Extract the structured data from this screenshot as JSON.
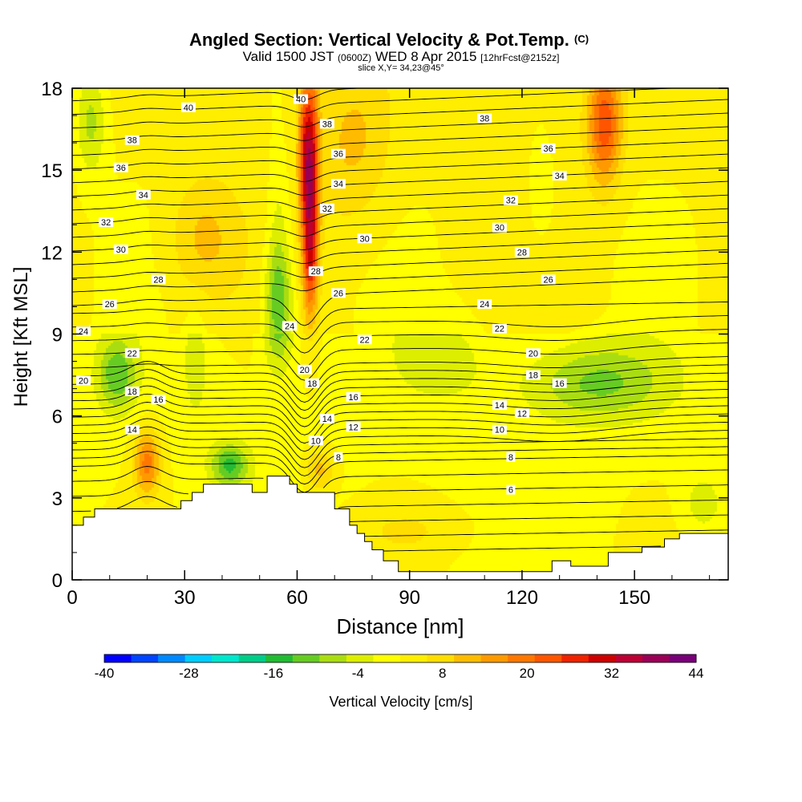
{
  "chart_data": {
    "type": "heatmap",
    "title": {
      "line1": "Angled Section: Vertical Velocity & Pot.Temp.",
      "line1_unit": "(C)",
      "line2_a": "Valid 1500 JST",
      "line2_b": "(0600Z)",
      "line2_c": "WED 8 Apr 2015",
      "line2_d": "[12hrFcst@2152z]",
      "line3": "slice X,Y= 34,23@45°"
    },
    "xlabel": "Distance [nm]",
    "ylabel": "Height [Kft MSL]",
    "xlim": [
      0,
      175
    ],
    "ylim": [
      0,
      18
    ],
    "xticks": [
      0,
      30,
      60,
      90,
      120,
      150
    ],
    "yticks": [
      0,
      3,
      6,
      9,
      12,
      15,
      18
    ],
    "colorbar": {
      "label": "Vertical Velocity [cm/s]",
      "min": -40,
      "max": 44,
      "step": 4,
      "ticks": [
        -40,
        -28,
        -16,
        -4,
        8,
        20,
        32,
        44
      ],
      "colors": [
        "#0000ff",
        "#0044ff",
        "#0088ff",
        "#00ccff",
        "#00e6cc",
        "#00cc88",
        "#22bb33",
        "#66cc22",
        "#aadd11",
        "#ddee00",
        "#ffff00",
        "#ffee00",
        "#ffdd00",
        "#ffbb00",
        "#ff9900",
        "#ff7700",
        "#ff5500",
        "#ee2200",
        "#cc0000",
        "#bb0033",
        "#990055",
        "#770077"
      ]
    },
    "terrain": [
      [
        0,
        2.0
      ],
      [
        3,
        2.0
      ],
      [
        3,
        2.3
      ],
      [
        6,
        2.3
      ],
      [
        6,
        2.6
      ],
      [
        12,
        2.6
      ],
      [
        12,
        2.6
      ],
      [
        18,
        2.6
      ],
      [
        29,
        2.6
      ],
      [
        29,
        2.9
      ],
      [
        32,
        2.9
      ],
      [
        32,
        3.2
      ],
      [
        35,
        3.2
      ],
      [
        35,
        3.5
      ],
      [
        39,
        3.5
      ],
      [
        48,
        3.5
      ],
      [
        48,
        3.2
      ],
      [
        52,
        3.2
      ],
      [
        52,
        3.8
      ],
      [
        58,
        3.8
      ],
      [
        58,
        3.5
      ],
      [
        60,
        3.5
      ],
      [
        60,
        3.2
      ],
      [
        70,
        3.2
      ],
      [
        70,
        2.6
      ],
      [
        74,
        2.6
      ],
      [
        74,
        2.0
      ],
      [
        76,
        2.0
      ],
      [
        76,
        1.7
      ],
      [
        78,
        1.7
      ],
      [
        78,
        1.4
      ],
      [
        80,
        1.4
      ],
      [
        80,
        1.1
      ],
      [
        83,
        1.1
      ],
      [
        83,
        0.7
      ],
      [
        87,
        0.7
      ],
      [
        87,
        0.3
      ],
      [
        100,
        0.3
      ],
      [
        128,
        0.3
      ],
      [
        128,
        0.7
      ],
      [
        133,
        0.7
      ],
      [
        133,
        0.5
      ],
      [
        143,
        0.5
      ],
      [
        143,
        1.0
      ],
      [
        152,
        1.0
      ],
      [
        152,
        1.2
      ],
      [
        158,
        1.2
      ],
      [
        158,
        1.5
      ],
      [
        162,
        1.5
      ],
      [
        162,
        1.7
      ],
      [
        175,
        1.7
      ]
    ],
    "cells": [
      {
        "x": 63.5,
        "y": 14.5,
        "sx": 2.2,
        "sy": 4.0,
        "v": 34
      },
      {
        "x": 63.5,
        "y": 11.5,
        "sx": 1.8,
        "sy": 1.5,
        "v": 8
      },
      {
        "x": 61.5,
        "y": 15.8,
        "sx": 1.5,
        "sy": 2.5,
        "v": 10
      },
      {
        "x": 20,
        "y": 4.3,
        "sx": 3.5,
        "sy": 1.2,
        "v": 18
      },
      {
        "x": 66,
        "y": 4.0,
        "sx": 4,
        "sy": 0.8,
        "v": 10
      },
      {
        "x": 142,
        "y": 16.7,
        "sx": 4.5,
        "sy": 2.2,
        "v": 22
      },
      {
        "x": 75,
        "y": 16,
        "sx": 10,
        "sy": 3,
        "v": 8
      },
      {
        "x": 35,
        "y": 12.5,
        "sx": 9,
        "sy": 2.2,
        "v": 8
      },
      {
        "x": 5,
        "y": 16.8,
        "sx": 4,
        "sy": 2.0,
        "v": -10
      },
      {
        "x": 12,
        "y": 7.5,
        "sx": 5,
        "sy": 1.3,
        "v": -14
      },
      {
        "x": 55,
        "y": 10,
        "sx": 4,
        "sy": 2.2,
        "v": -16
      },
      {
        "x": 42,
        "y": 4.2,
        "sx": 5,
        "sy": 0.8,
        "v": -16
      },
      {
        "x": 125,
        "y": 14,
        "sx": 4,
        "sy": 2.2,
        "v": -4
      },
      {
        "x": 140,
        "y": 7.2,
        "sx": 18,
        "sy": 1.4,
        "v": -12
      },
      {
        "x": 100,
        "y": 8,
        "sx": 15,
        "sy": 2.0,
        "v": -4
      },
      {
        "x": 90,
        "y": 1.8,
        "sx": 18,
        "sy": 1.0,
        "v": 4
      },
      {
        "x": 168,
        "y": 2.8,
        "sx": 5,
        "sy": 1.0,
        "v": -6
      },
      {
        "x": 55,
        "y": 13,
        "sx": 3,
        "sy": 3,
        "v": -6
      },
      {
        "x": 33,
        "y": 8,
        "sx": 3,
        "sy": 2,
        "v": -6
      }
    ],
    "isotherm_labels": [
      {
        "x": 31,
        "y": 17.3,
        "t": "40"
      },
      {
        "x": 61,
        "y": 17.6,
        "t": "40"
      },
      {
        "x": 16,
        "y": 16.1,
        "t": "38"
      },
      {
        "x": 68,
        "y": 16.7,
        "t": "38"
      },
      {
        "x": 110,
        "y": 16.9,
        "t": "38"
      },
      {
        "x": 13,
        "y": 15.1,
        "t": "36"
      },
      {
        "x": 71,
        "y": 15.6,
        "t": "36"
      },
      {
        "x": 127,
        "y": 15.8,
        "t": "36"
      },
      {
        "x": 19,
        "y": 14.1,
        "t": "34"
      },
      {
        "x": 71,
        "y": 14.5,
        "t": "34"
      },
      {
        "x": 130,
        "y": 14.8,
        "t": "34"
      },
      {
        "x": 9,
        "y": 13.1,
        "t": "32"
      },
      {
        "x": 68,
        "y": 13.6,
        "t": "32"
      },
      {
        "x": 117,
        "y": 13.9,
        "t": "32"
      },
      {
        "x": 13,
        "y": 12.1,
        "t": "30"
      },
      {
        "x": 78,
        "y": 12.5,
        "t": "30"
      },
      {
        "x": 114,
        "y": 12.9,
        "t": "30"
      },
      {
        "x": 23,
        "y": 11.0,
        "t": "28"
      },
      {
        "x": 65,
        "y": 11.3,
        "t": "28"
      },
      {
        "x": 120,
        "y": 12.0,
        "t": "28"
      },
      {
        "x": 10,
        "y": 10.1,
        "t": "26"
      },
      {
        "x": 71,
        "y": 10.5,
        "t": "26"
      },
      {
        "x": 127,
        "y": 11.0,
        "t": "26"
      },
      {
        "x": 3,
        "y": 9.1,
        "t": "24"
      },
      {
        "x": 58,
        "y": 9.3,
        "t": "24"
      },
      {
        "x": 110,
        "y": 10.1,
        "t": "24"
      },
      {
        "x": 16,
        "y": 8.3,
        "t": "22"
      },
      {
        "x": 78,
        "y": 8.8,
        "t": "22"
      },
      {
        "x": 114,
        "y": 9.2,
        "t": "22"
      },
      {
        "x": 3,
        "y": 7.3,
        "t": "20"
      },
      {
        "x": 62,
        "y": 7.7,
        "t": "20"
      },
      {
        "x": 123,
        "y": 8.3,
        "t": "20"
      },
      {
        "x": 16,
        "y": 6.9,
        "t": "18"
      },
      {
        "x": 64,
        "y": 7.2,
        "t": "18"
      },
      {
        "x": 123,
        "y": 7.5,
        "t": "18"
      },
      {
        "x": 23,
        "y": 6.6,
        "t": "16"
      },
      {
        "x": 75,
        "y": 6.7,
        "t": "16"
      },
      {
        "x": 130,
        "y": 7.2,
        "t": "16"
      },
      {
        "x": 16,
        "y": 5.5,
        "t": "14"
      },
      {
        "x": 68,
        "y": 5.9,
        "t": "14"
      },
      {
        "x": 114,
        "y": 6.4,
        "t": "14"
      },
      {
        "x": 75,
        "y": 5.6,
        "t": "12"
      },
      {
        "x": 120,
        "y": 6.1,
        "t": "12"
      },
      {
        "x": 65,
        "y": 5.1,
        "t": "10"
      },
      {
        "x": 114,
        "y": 5.5,
        "t": "10"
      },
      {
        "x": 71,
        "y": 4.5,
        "t": "8"
      },
      {
        "x": 117,
        "y": 4.5,
        "t": "8"
      },
      {
        "x": 117,
        "y": 3.3,
        "t": "6"
      }
    ]
  }
}
